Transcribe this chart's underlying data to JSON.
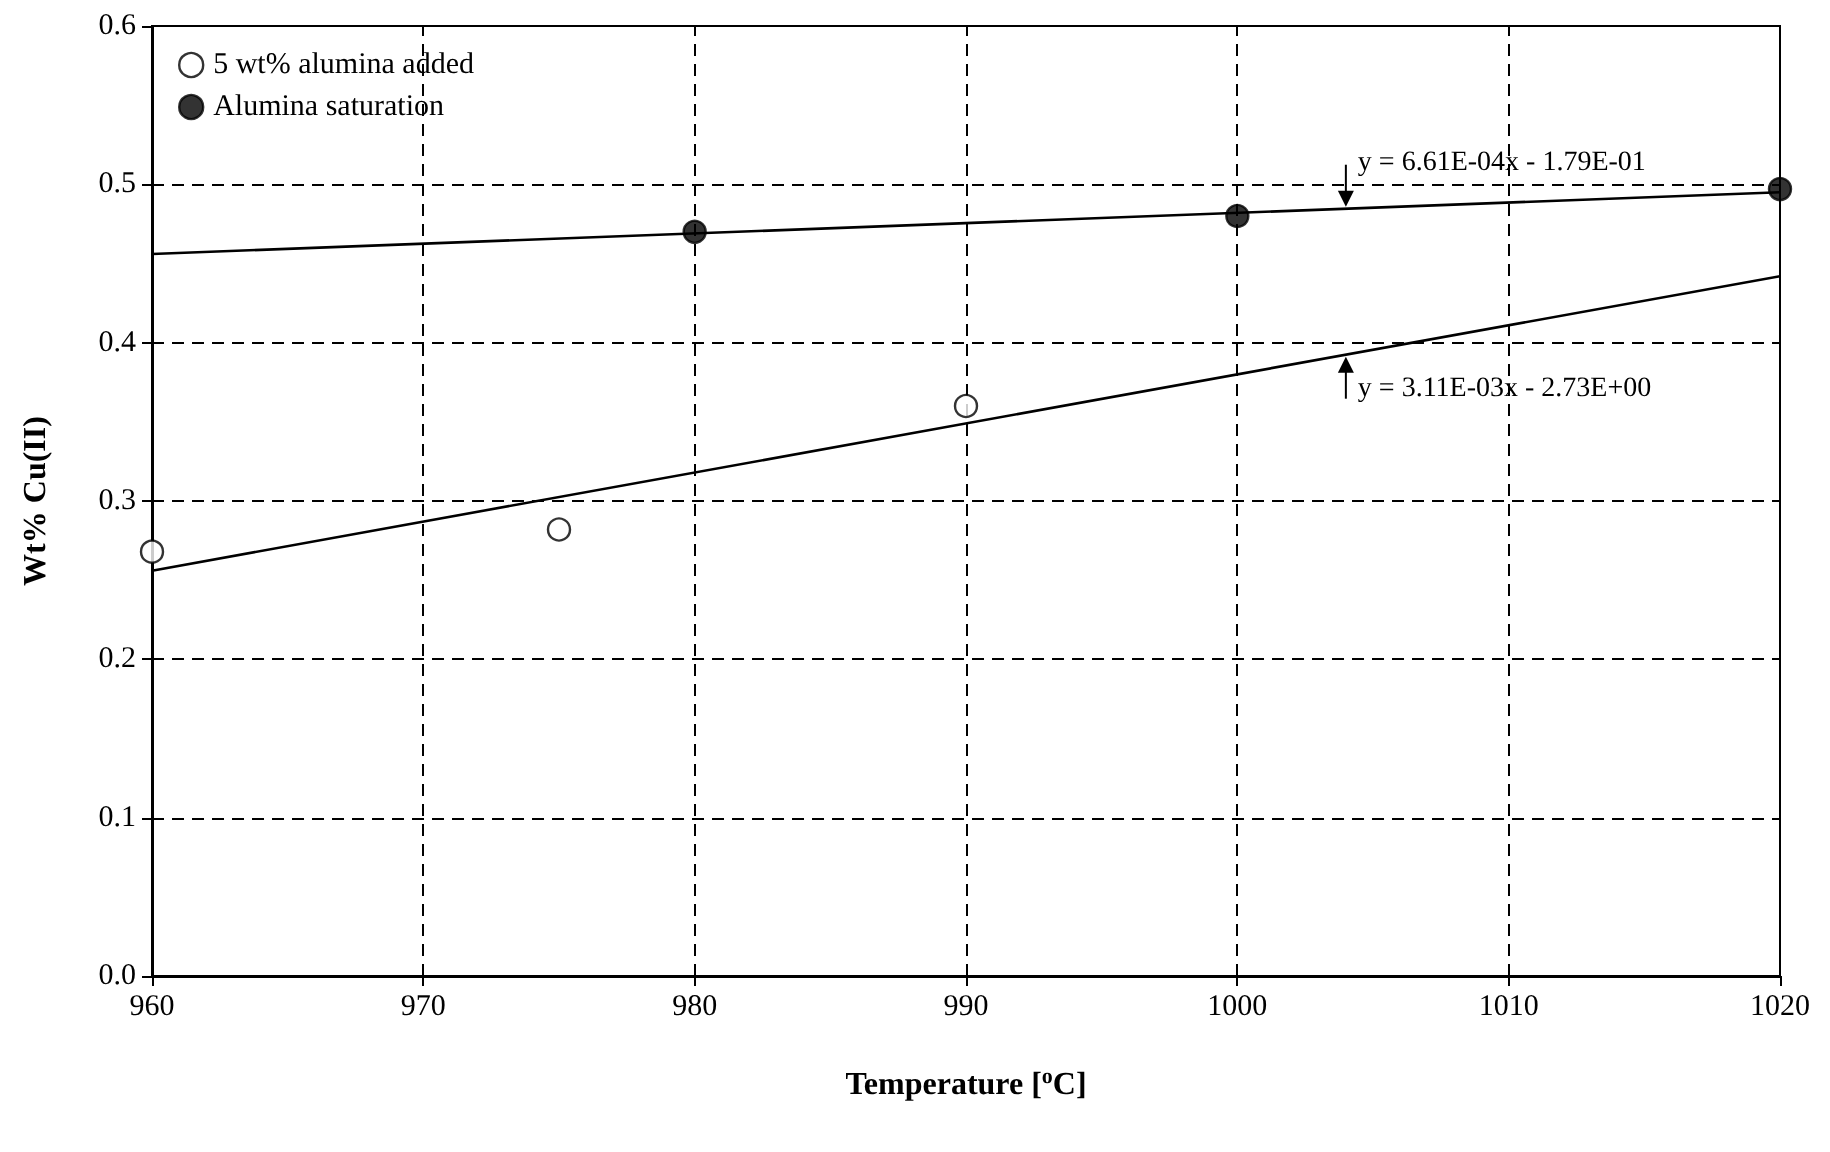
{
  "chart_data": {
    "type": "scatter",
    "xlabel": "Temperature [$^{o}$C]",
    "ylabel": "Wt% Cu(II)",
    "xlim": [
      960,
      1020
    ],
    "xticks": [
      960,
      970,
      980,
      990,
      1000,
      1010,
      1020
    ],
    "ylim": [
      0,
      0.6
    ],
    "yticks": [
      {
        "value": 0,
        "label": "0.0"
      },
      {
        "value": 0.1,
        "label": "0.1"
      },
      {
        "value": 0.2,
        "label": "0.2"
      },
      {
        "value": 0.3,
        "label": "0.3"
      },
      {
        "value": 0.4,
        "label": "0.4"
      },
      {
        "value": 0.5,
        "label": "0.5"
      },
      {
        "value": 0.6,
        "label": "0.6"
      }
    ],
    "grid": true,
    "legend": "top left",
    "series": [
      {
        "name": "5 wt% alumina added",
        "color": "#ffffff",
        "marker": "circle",
        "x": [
          960,
          975,
          990
        ],
        "values": [
          0.268,
          0.282,
          0.36
        ]
      },
      {
        "name": "Alumina saturation",
        "color": "#000000",
        "marker": "circle",
        "x": [
          980,
          1000,
          1020
        ],
        "values": [
          0.47,
          0.48,
          0.497
        ]
      },
      {
        "type": "line",
        "color": "#000000",
        "marker": "none",
        "x": [
          960,
          1020
        ],
        "values": [
          0.456,
          0.495
        ]
      },
      {
        "type": "line",
        "color": "#000000",
        "marker": "none",
        "x": [
          960,
          1020
        ],
        "values": [
          0.256,
          0.442
        ]
      }
    ],
    "annotations": [
      {
        "text": "y = 6.61E-04x - 1.79E-01",
        "x": 1004,
        "y": 0.4846
      },
      {
        "text": "y = 3.11E-03x - 2.73E+00",
        "x": 1004,
        "y": 0.3924
      }
    ]
  }
}
